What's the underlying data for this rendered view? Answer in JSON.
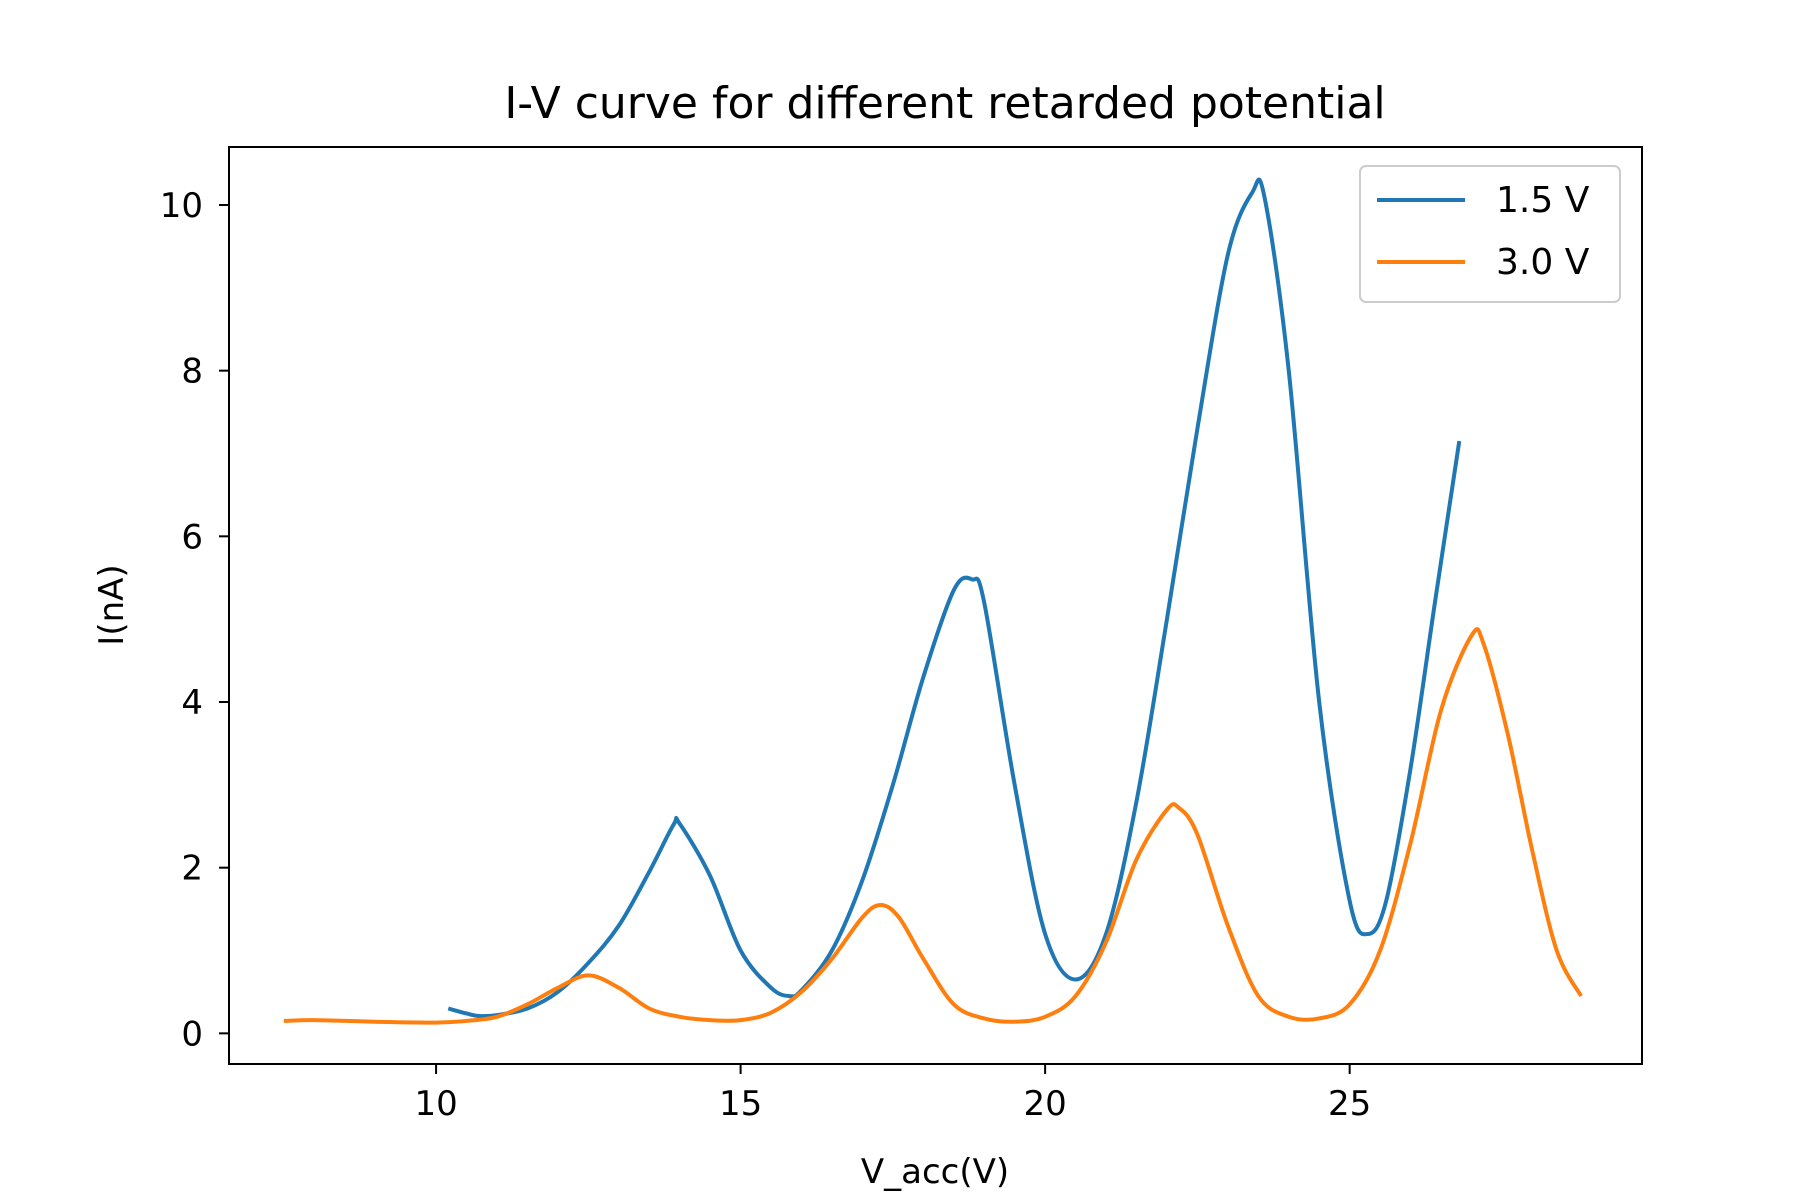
{
  "chart_data": {
    "type": "line",
    "title": "I-V curve for different retarded potential",
    "xlabel": "V_acc(V)",
    "ylabel": "I(nA)",
    "xlim": [
      6.6,
      29.8
    ],
    "ylim": [
      -0.37,
      10.7
    ],
    "xticks": [
      10,
      15,
      20,
      25
    ],
    "yticks": [
      0,
      2,
      4,
      6,
      8,
      10
    ],
    "grid": false,
    "legend_position": "top-right",
    "series": [
      {
        "name": "1.5 V",
        "color": "#1f77b4",
        "points": [
          [
            10.2,
            0.3
          ],
          [
            10.5,
            0.24
          ],
          [
            10.7,
            0.21
          ],
          [
            11.0,
            0.22
          ],
          [
            11.5,
            0.3
          ],
          [
            12.0,
            0.5
          ],
          [
            12.5,
            0.85
          ],
          [
            13.0,
            1.3
          ],
          [
            13.5,
            1.95
          ],
          [
            13.9,
            2.52
          ],
          [
            14.0,
            2.53
          ],
          [
            14.5,
            1.9
          ],
          [
            15.0,
            1.0
          ],
          [
            15.5,
            0.55
          ],
          [
            15.8,
            0.45
          ],
          [
            16.0,
            0.52
          ],
          [
            16.5,
            1.0
          ],
          [
            17.0,
            1.85
          ],
          [
            17.5,
            3.0
          ],
          [
            18.0,
            4.3
          ],
          [
            18.5,
            5.35
          ],
          [
            18.8,
            5.48
          ],
          [
            19.0,
            5.2
          ],
          [
            19.5,
            3.0
          ],
          [
            20.0,
            1.2
          ],
          [
            20.5,
            0.65
          ],
          [
            21.0,
            1.2
          ],
          [
            21.5,
            2.8
          ],
          [
            22.0,
            5.0
          ],
          [
            22.5,
            7.3
          ],
          [
            23.0,
            9.4
          ],
          [
            23.4,
            10.15
          ],
          [
            23.6,
            10.1
          ],
          [
            24.0,
            8.0
          ],
          [
            24.5,
            4.0
          ],
          [
            25.0,
            1.6
          ],
          [
            25.3,
            1.2
          ],
          [
            25.6,
            1.6
          ],
          [
            26.0,
            3.2
          ],
          [
            26.4,
            5.2
          ],
          [
            26.8,
            7.15
          ]
        ]
      },
      {
        "name": "3.0 V",
        "color": "#ff7f0e",
        "points": [
          [
            7.5,
            0.15
          ],
          [
            8.0,
            0.16
          ],
          [
            9.0,
            0.14
          ],
          [
            10.0,
            0.13
          ],
          [
            10.5,
            0.15
          ],
          [
            11.0,
            0.2
          ],
          [
            11.5,
            0.35
          ],
          [
            12.0,
            0.55
          ],
          [
            12.5,
            0.7
          ],
          [
            13.0,
            0.55
          ],
          [
            13.5,
            0.3
          ],
          [
            14.0,
            0.2
          ],
          [
            14.5,
            0.16
          ],
          [
            15.0,
            0.16
          ],
          [
            15.5,
            0.25
          ],
          [
            16.0,
            0.5
          ],
          [
            16.5,
            0.9
          ],
          [
            17.0,
            1.4
          ],
          [
            17.3,
            1.55
          ],
          [
            17.6,
            1.4
          ],
          [
            18.0,
            0.9
          ],
          [
            18.5,
            0.35
          ],
          [
            19.0,
            0.18
          ],
          [
            19.5,
            0.14
          ],
          [
            20.0,
            0.2
          ],
          [
            20.5,
            0.45
          ],
          [
            21.0,
            1.1
          ],
          [
            21.5,
            2.1
          ],
          [
            22.0,
            2.7
          ],
          [
            22.2,
            2.72
          ],
          [
            22.5,
            2.4
          ],
          [
            23.0,
            1.3
          ],
          [
            23.5,
            0.45
          ],
          [
            24.0,
            0.2
          ],
          [
            24.5,
            0.18
          ],
          [
            25.0,
            0.35
          ],
          [
            25.5,
            1.0
          ],
          [
            26.0,
            2.3
          ],
          [
            26.5,
            3.9
          ],
          [
            27.0,
            4.8
          ],
          [
            27.2,
            4.7
          ],
          [
            27.6,
            3.6
          ],
          [
            28.0,
            2.2
          ],
          [
            28.4,
            1.0
          ],
          [
            28.8,
            0.45
          ]
        ]
      }
    ]
  }
}
